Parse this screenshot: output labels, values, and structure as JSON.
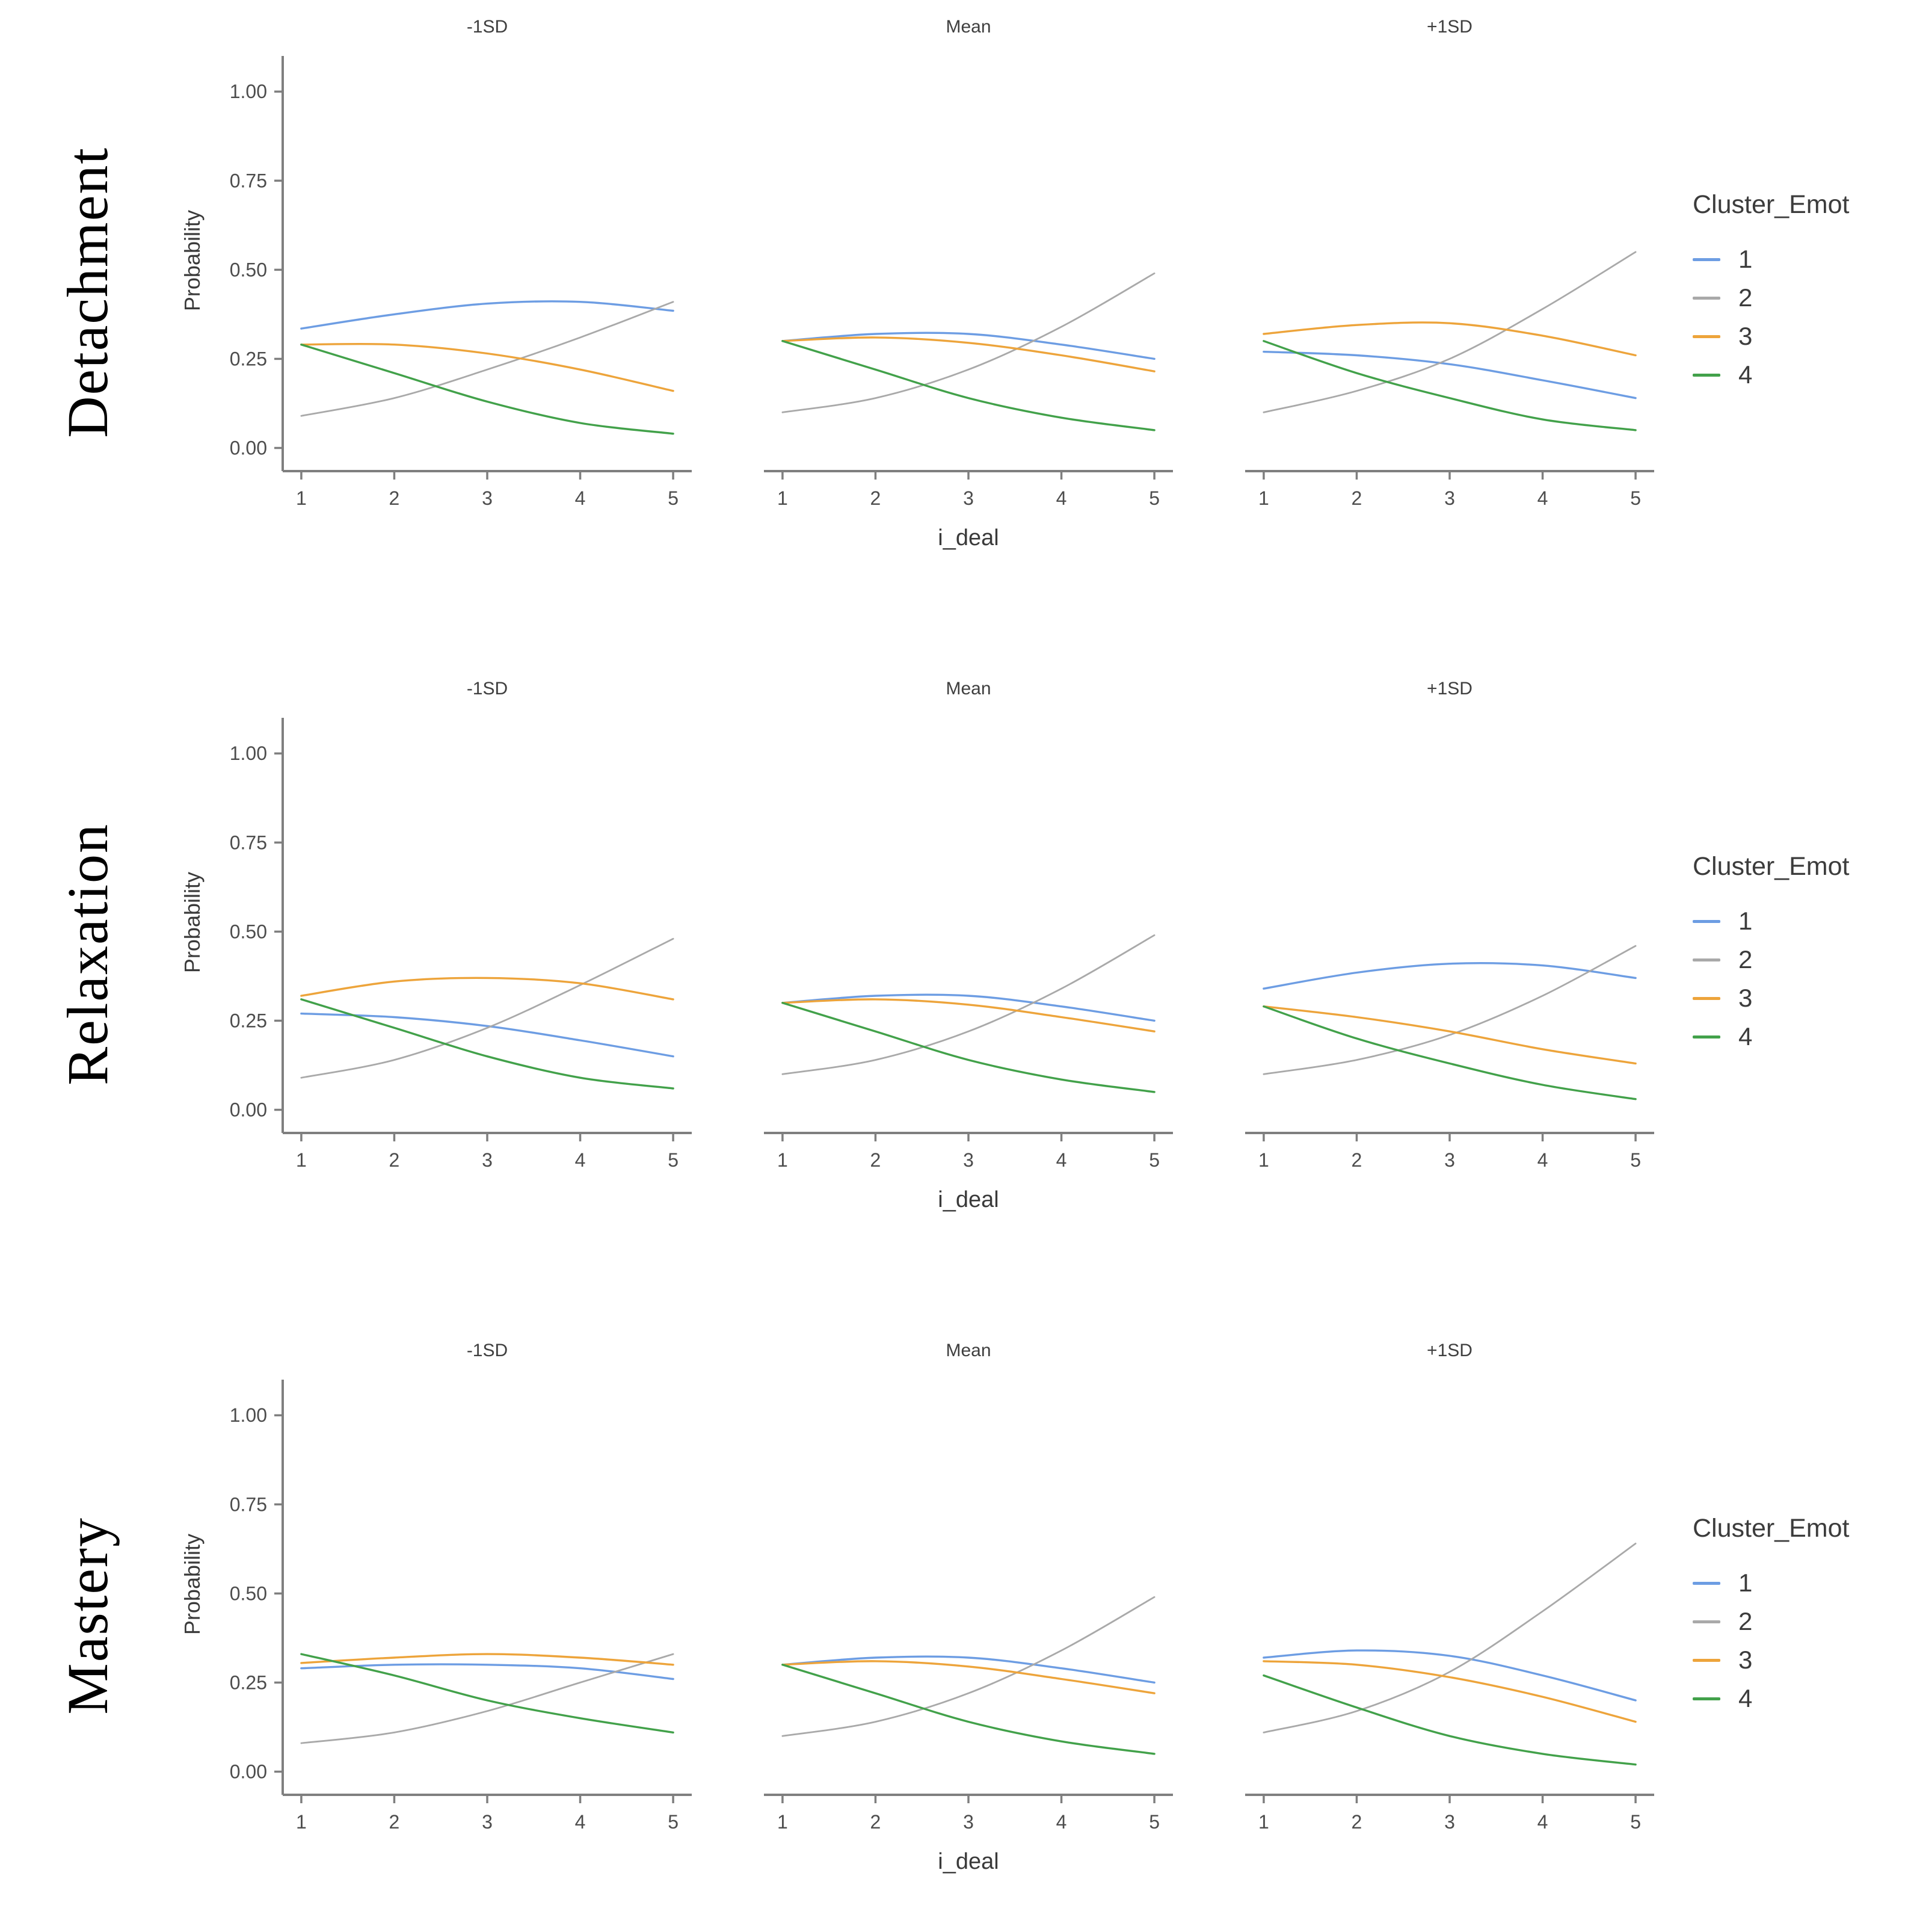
{
  "figure": {
    "facet_cols": [
      "-1SD",
      "Mean",
      "+1SD"
    ],
    "rows": [
      {
        "label": "Detachment"
      },
      {
        "label": "Relaxation"
      },
      {
        "label": "Mastery"
      }
    ],
    "xlabel": "i_deal",
    "ylabel": "Probability",
    "x_ticks": [
      "1",
      "2",
      "3",
      "4",
      "5"
    ],
    "y_ticks": [
      {
        "v": 1.0,
        "label": "1.00"
      },
      {
        "v": 0.75,
        "label": "0.75"
      },
      {
        "v": 0.5,
        "label": "0.50"
      },
      {
        "v": 0.25,
        "label": "0.25"
      },
      {
        "v": 0.0,
        "label": "0.00"
      }
    ],
    "legend": {
      "title": "Cluster_Emot",
      "entries": [
        {
          "label": "1",
          "color": "#6d9de3"
        },
        {
          "label": "2",
          "color": "#a9a9a9"
        },
        {
          "label": "3",
          "color": "#eda43b"
        },
        {
          "label": "4",
          "color": "#42a14a"
        }
      ]
    },
    "axis_color": "#7f7f7f",
    "tick_text_color": "#4d4d4d"
  },
  "chart_data": [
    {
      "type": "line",
      "row": "Detachment",
      "facet": "-1SD",
      "xlabel": "i_deal",
      "ylabel": "Probability",
      "ylim": [
        0,
        1
      ],
      "x": [
        1,
        2,
        3,
        4,
        5
      ],
      "series": [
        {
          "name": "1",
          "values": [
            0.335,
            0.375,
            0.405,
            0.41,
            0.385
          ]
        },
        {
          "name": "2",
          "values": [
            0.09,
            0.14,
            0.22,
            0.31,
            0.41
          ]
        },
        {
          "name": "3",
          "values": [
            0.29,
            0.29,
            0.265,
            0.22,
            0.16
          ]
        },
        {
          "name": "4",
          "values": [
            0.29,
            0.21,
            0.13,
            0.07,
            0.04
          ]
        }
      ]
    },
    {
      "type": "line",
      "row": "Detachment",
      "facet": "Mean",
      "xlabel": "i_deal",
      "ylabel": "Probability",
      "ylim": [
        0,
        1
      ],
      "x": [
        1,
        2,
        3,
        4,
        5
      ],
      "series": [
        {
          "name": "1",
          "values": [
            0.3,
            0.32,
            0.32,
            0.29,
            0.25
          ]
        },
        {
          "name": "2",
          "values": [
            0.1,
            0.14,
            0.22,
            0.34,
            0.49
          ]
        },
        {
          "name": "3",
          "values": [
            0.3,
            0.31,
            0.295,
            0.26,
            0.215
          ]
        },
        {
          "name": "4",
          "values": [
            0.3,
            0.22,
            0.14,
            0.085,
            0.05
          ]
        }
      ]
    },
    {
      "type": "line",
      "row": "Detachment",
      "facet": "+1SD",
      "xlabel": "i_deal",
      "ylabel": "Probability",
      "ylim": [
        0,
        1
      ],
      "x": [
        1,
        2,
        3,
        4,
        5
      ],
      "series": [
        {
          "name": "1",
          "values": [
            0.27,
            0.26,
            0.235,
            0.19,
            0.14
          ]
        },
        {
          "name": "2",
          "values": [
            0.1,
            0.16,
            0.25,
            0.39,
            0.55
          ]
        },
        {
          "name": "3",
          "values": [
            0.32,
            0.345,
            0.35,
            0.315,
            0.26
          ]
        },
        {
          "name": "4",
          "values": [
            0.3,
            0.21,
            0.14,
            0.08,
            0.05
          ]
        }
      ]
    },
    {
      "type": "line",
      "row": "Relaxation",
      "facet": "-1SD",
      "xlabel": "i_deal",
      "ylabel": "Probability",
      "ylim": [
        0,
        1
      ],
      "x": [
        1,
        2,
        3,
        4,
        5
      ],
      "series": [
        {
          "name": "1",
          "values": [
            0.27,
            0.26,
            0.235,
            0.195,
            0.15
          ]
        },
        {
          "name": "2",
          "values": [
            0.09,
            0.14,
            0.23,
            0.35,
            0.48
          ]
        },
        {
          "name": "3",
          "values": [
            0.32,
            0.36,
            0.37,
            0.355,
            0.31
          ]
        },
        {
          "name": "4",
          "values": [
            0.31,
            0.23,
            0.15,
            0.09,
            0.06
          ]
        }
      ]
    },
    {
      "type": "line",
      "row": "Relaxation",
      "facet": "Mean",
      "xlabel": "i_deal",
      "ylabel": "Probability",
      "ylim": [
        0,
        1
      ],
      "x": [
        1,
        2,
        3,
        4,
        5
      ],
      "series": [
        {
          "name": "1",
          "values": [
            0.3,
            0.32,
            0.32,
            0.29,
            0.25
          ]
        },
        {
          "name": "2",
          "values": [
            0.1,
            0.14,
            0.22,
            0.34,
            0.49
          ]
        },
        {
          "name": "3",
          "values": [
            0.3,
            0.31,
            0.295,
            0.26,
            0.22
          ]
        },
        {
          "name": "4",
          "values": [
            0.3,
            0.22,
            0.14,
            0.085,
            0.05
          ]
        }
      ]
    },
    {
      "type": "line",
      "row": "Relaxation",
      "facet": "+1SD",
      "xlabel": "i_deal",
      "ylabel": "Probability",
      "ylim": [
        0,
        1
      ],
      "x": [
        1,
        2,
        3,
        4,
        5
      ],
      "series": [
        {
          "name": "1",
          "values": [
            0.34,
            0.385,
            0.41,
            0.405,
            0.37
          ]
        },
        {
          "name": "2",
          "values": [
            0.1,
            0.14,
            0.21,
            0.32,
            0.46
          ]
        },
        {
          "name": "3",
          "values": [
            0.29,
            0.26,
            0.22,
            0.17,
            0.13
          ]
        },
        {
          "name": "4",
          "values": [
            0.29,
            0.2,
            0.13,
            0.07,
            0.03
          ]
        }
      ]
    },
    {
      "type": "line",
      "row": "Mastery",
      "facet": "-1SD",
      "xlabel": "i_deal",
      "ylabel": "Probability",
      "ylim": [
        0,
        1
      ],
      "x": [
        1,
        2,
        3,
        4,
        5
      ],
      "series": [
        {
          "name": "1",
          "values": [
            0.29,
            0.3,
            0.3,
            0.29,
            0.26
          ]
        },
        {
          "name": "2",
          "values": [
            0.08,
            0.11,
            0.17,
            0.25,
            0.33
          ]
        },
        {
          "name": "3",
          "values": [
            0.305,
            0.32,
            0.33,
            0.32,
            0.3
          ]
        },
        {
          "name": "4",
          "values": [
            0.33,
            0.27,
            0.2,
            0.15,
            0.11
          ]
        }
      ]
    },
    {
      "type": "line",
      "row": "Mastery",
      "facet": "Mean",
      "xlabel": "i_deal",
      "ylabel": "Probability",
      "ylim": [
        0,
        1
      ],
      "x": [
        1,
        2,
        3,
        4,
        5
      ],
      "series": [
        {
          "name": "1",
          "values": [
            0.3,
            0.32,
            0.32,
            0.29,
            0.25
          ]
        },
        {
          "name": "2",
          "values": [
            0.1,
            0.14,
            0.22,
            0.34,
            0.49
          ]
        },
        {
          "name": "3",
          "values": [
            0.3,
            0.31,
            0.295,
            0.26,
            0.22
          ]
        },
        {
          "name": "4",
          "values": [
            0.3,
            0.22,
            0.14,
            0.085,
            0.05
          ]
        }
      ]
    },
    {
      "type": "line",
      "row": "Mastery",
      "facet": "+1SD",
      "xlabel": "i_deal",
      "ylabel": "Probability",
      "ylim": [
        0,
        1
      ],
      "x": [
        1,
        2,
        3,
        4,
        5
      ],
      "series": [
        {
          "name": "1",
          "values": [
            0.32,
            0.34,
            0.325,
            0.27,
            0.2
          ]
        },
        {
          "name": "2",
          "values": [
            0.11,
            0.17,
            0.28,
            0.45,
            0.64
          ]
        },
        {
          "name": "3",
          "values": [
            0.31,
            0.3,
            0.265,
            0.21,
            0.14
          ]
        },
        {
          "name": "4",
          "values": [
            0.27,
            0.18,
            0.1,
            0.05,
            0.02
          ]
        }
      ]
    }
  ]
}
